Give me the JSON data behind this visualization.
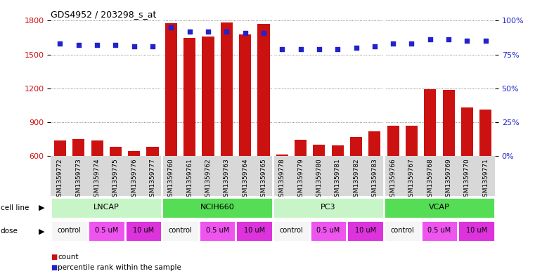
{
  "title": "GDS4952 / 203298_s_at",
  "samples": [
    "GSM1359772",
    "GSM1359773",
    "GSM1359774",
    "GSM1359775",
    "GSM1359776",
    "GSM1359777",
    "GSM1359760",
    "GSM1359761",
    "GSM1359762",
    "GSM1359763",
    "GSM1359764",
    "GSM1359765",
    "GSM1359778",
    "GSM1359779",
    "GSM1359780",
    "GSM1359781",
    "GSM1359782",
    "GSM1359783",
    "GSM1359766",
    "GSM1359767",
    "GSM1359768",
    "GSM1359769",
    "GSM1359770",
    "GSM1359771"
  ],
  "counts": [
    740,
    750,
    735,
    680,
    645,
    680,
    1780,
    1650,
    1660,
    1785,
    1680,
    1770,
    610,
    745,
    700,
    695,
    770,
    820,
    870,
    870,
    1195,
    1185,
    1030,
    1010
  ],
  "percentile_ranks": [
    83,
    82,
    82,
    82,
    81,
    81,
    95,
    92,
    92,
    92,
    91,
    91,
    79,
    79,
    79,
    79,
    80,
    81,
    83,
    83,
    86,
    86,
    85,
    85
  ],
  "cell_lines": [
    {
      "name": "LNCAP",
      "start": 0,
      "end": 6,
      "color": "#c8f5c8"
    },
    {
      "name": "NCIH660",
      "start": 6,
      "end": 12,
      "color": "#55dd55"
    },
    {
      "name": "PC3",
      "start": 12,
      "end": 18,
      "color": "#c8f5c8"
    },
    {
      "name": "VCAP",
      "start": 18,
      "end": 24,
      "color": "#55dd55"
    }
  ],
  "dose_groups": [
    {
      "label": "control",
      "start": 0,
      "end": 2,
      "color": "#f5f5f5"
    },
    {
      "label": "0.5 uM",
      "start": 2,
      "end": 4,
      "color": "#ee55ee"
    },
    {
      "label": "10 uM",
      "start": 4,
      "end": 6,
      "color": "#dd33dd"
    },
    {
      "label": "control",
      "start": 6,
      "end": 8,
      "color": "#f5f5f5"
    },
    {
      "label": "0.5 uM",
      "start": 8,
      "end": 10,
      "color": "#ee55ee"
    },
    {
      "label": "10 uM",
      "start": 10,
      "end": 12,
      "color": "#dd33dd"
    },
    {
      "label": "control",
      "start": 12,
      "end": 14,
      "color": "#f5f5f5"
    },
    {
      "label": "0.5 uM",
      "start": 14,
      "end": 16,
      "color": "#ee55ee"
    },
    {
      "label": "10 uM",
      "start": 16,
      "end": 18,
      "color": "#dd33dd"
    },
    {
      "label": "control",
      "start": 18,
      "end": 20,
      "color": "#f5f5f5"
    },
    {
      "label": "0.5 uM",
      "start": 20,
      "end": 22,
      "color": "#ee55ee"
    },
    {
      "label": "10 uM",
      "start": 22,
      "end": 24,
      "color": "#dd33dd"
    }
  ],
  "bar_color": "#cc1111",
  "dot_color": "#2222cc",
  "ylim_left": [
    600,
    1800
  ],
  "ylim_right": [
    0,
    100
  ],
  "yticks_left": [
    600,
    900,
    1200,
    1500,
    1800
  ],
  "yticks_right": [
    0,
    25,
    50,
    75,
    100
  ],
  "ytick_labels_right": [
    "0%",
    "25%",
    "50%",
    "75%",
    "100%"
  ],
  "bg_color": "#ffffff",
  "grid_color": "#666666",
  "label_bg": "#d8d8d8"
}
